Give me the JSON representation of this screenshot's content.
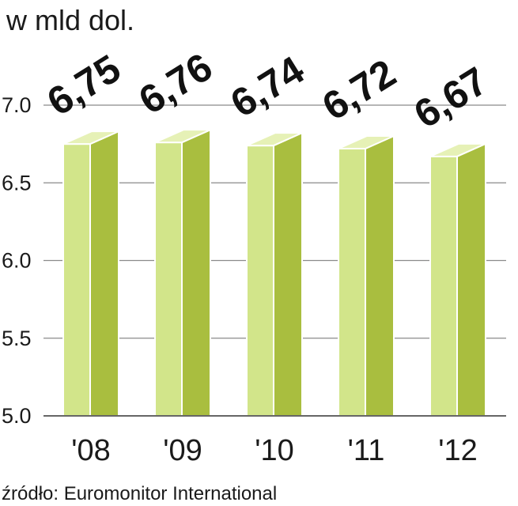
{
  "unit_label": "w mld dol.",
  "source": "źródło: Euromonitor International",
  "colors": {
    "bar_front": "#d2e58a",
    "bar_side": "#a9be3f",
    "bar_top": "#e6f1b6",
    "bar_outline": "#ffffff"
  },
  "chart_data": {
    "type": "bar",
    "title": "",
    "xlabel": "",
    "ylabel": "w mld dol.",
    "categories": [
      "'08",
      "'09",
      "'10",
      "'11",
      "'12"
    ],
    "values": [
      6.75,
      6.76,
      6.74,
      6.72,
      6.67
    ],
    "data_labels": [
      "6,75",
      "6,76",
      "6,74",
      "6,72",
      "6,67"
    ],
    "ylim": [
      5.0,
      7.0
    ],
    "yticks": [
      7.0,
      6.5,
      6.0,
      5.5,
      5.0
    ],
    "ytick_labels": [
      "7.0",
      "6.5",
      "6.0",
      "5.5",
      "5.0"
    ],
    "grid": true,
    "legend": "none"
  }
}
